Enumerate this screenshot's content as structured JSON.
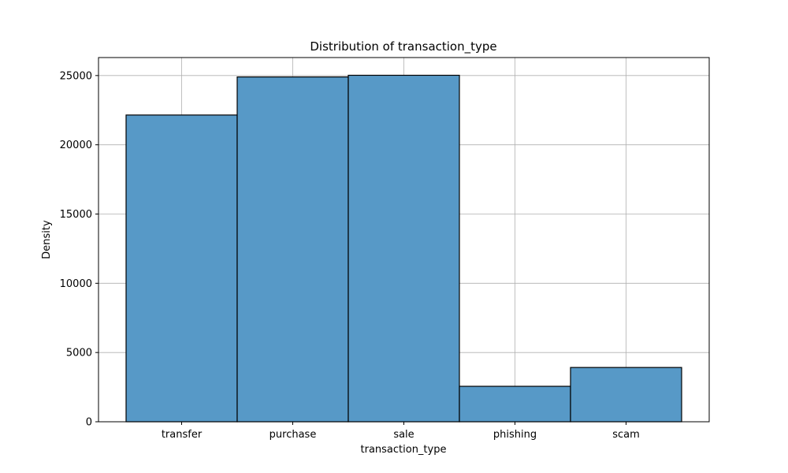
{
  "chart_data": {
    "type": "bar",
    "title": "Distribution of transaction_type",
    "xlabel": "transaction_type",
    "ylabel": "Density",
    "categories": [
      "transfer",
      "purchase",
      "sale",
      "phishing",
      "scam"
    ],
    "values": [
      22150,
      24900,
      25020,
      2560,
      3920
    ],
    "ylim": [
      0,
      26300
    ],
    "yticks": [
      0,
      5000,
      10000,
      15000,
      20000,
      25000
    ],
    "grid": true,
    "legend": "none",
    "colors": {
      "bar_fill": "#5799c7",
      "bar_edge": "#000000",
      "grid": "#b0b0b0",
      "axes": "#000000"
    }
  }
}
